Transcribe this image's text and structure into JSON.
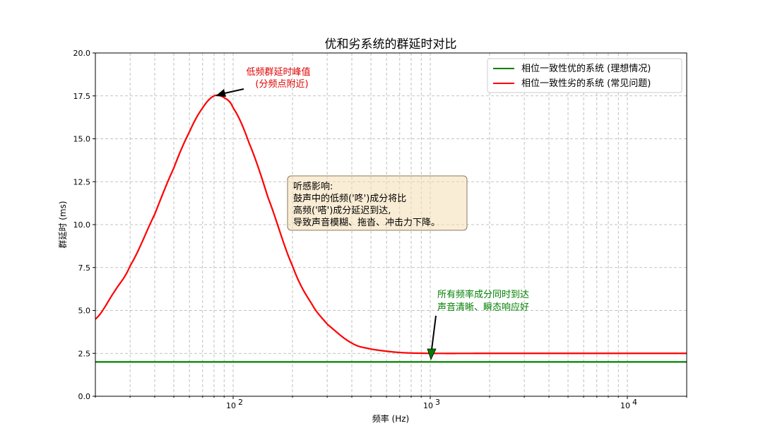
{
  "chart_data": {
    "type": "line",
    "title": "优和劣系统的群延时对比",
    "xlabel": "频率 (Hz)",
    "ylabel": "群延时 (ms)",
    "x_scale": "log",
    "xlim": [
      20,
      20000
    ],
    "ylim": [
      0,
      20
    ],
    "y_ticks": [
      "0.0",
      "2.5",
      "5.0",
      "7.5",
      "10.0",
      "12.5",
      "15.0",
      "17.5",
      "20.0"
    ],
    "x_ticks": [
      {
        "base": "10",
        "exp": "2"
      },
      {
        "base": "10",
        "exp": "3"
      },
      {
        "base": "10",
        "exp": "4"
      }
    ],
    "grid": true,
    "legend_position": "top-right",
    "series": [
      {
        "name": "相位一致性优的系统 (理想情况)",
        "color": "#008000",
        "x": [
          20,
          100,
          1000,
          10000,
          20000
        ],
        "y": [
          2.0,
          2.0,
          2.0,
          2.0,
          2.0
        ]
      },
      {
        "name": "相位一致性劣的系统 (常见问题)",
        "color": "#ff0000",
        "x": [
          20,
          25,
          30,
          40,
          50,
          60,
          70,
          80,
          90,
          100,
          120,
          150,
          200,
          250,
          300,
          400,
          500,
          700,
          1000,
          2000,
          5000,
          10000,
          20000
        ],
        "y": [
          4.5,
          6.1,
          7.6,
          10.6,
          13.3,
          15.4,
          16.8,
          17.5,
          17.4,
          16.8,
          14.8,
          11.6,
          7.6,
          5.4,
          4.2,
          3.1,
          2.75,
          2.55,
          2.5,
          2.5,
          2.5,
          2.5,
          2.5
        ]
      }
    ],
    "annotations": [
      {
        "id": "peak",
        "lines": [
          "低频群延时峰值",
          "(分频点附近)"
        ],
        "color": "#e00000",
        "arrow_to": {
          "x": 80,
          "y": 17.5
        }
      },
      {
        "id": "ideal",
        "lines": [
          "所有频率成分同时到达",
          "声音清晰、瞬态响应好"
        ],
        "color": "#008000",
        "arrow_to": {
          "x": 1000,
          "y": 2.0
        }
      },
      {
        "id": "effect",
        "lines": [
          "听感影响:",
          "鼓声中的低频('咚')成分将比",
          "高频('嗒')成分延迟到达,",
          "导致声音模糊、拖沓、冲击力下降。"
        ],
        "box_color": "#f5deb3"
      }
    ]
  }
}
